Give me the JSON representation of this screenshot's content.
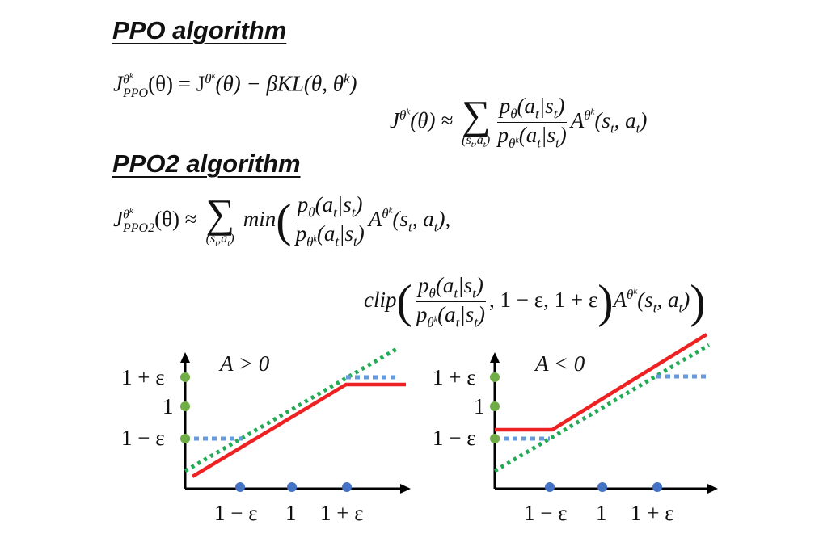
{
  "headings": {
    "ppo": "PPO algorithm",
    "ppo2": "PPO2 algorithm"
  },
  "ppo_formula": {
    "lhs_J": "J",
    "lhs_sup": "θ",
    "lhs_supsup": "k",
    "lhs_sub": "PPO",
    "rhs": "(θ) = J",
    "rhs_sup": "θ",
    "rhs_supsup": "k",
    "rhs_tail": "(θ) − βKL(θ, θ",
    "rhs_tail_sup": "k",
    "rhs_close": ")"
  },
  "j_approx": {
    "J": "J",
    "sup": "θ",
    "supsup": "k",
    "after": "(θ) ≈",
    "sum_limit": "(s",
    "sum_limit_sub": "t",
    "sum_limit_mid": ",a",
    "sum_limit_sub2": "t",
    "sum_limit_close": ")",
    "num": "p",
    "num_sub": "θ",
    "num_arg": "(a",
    "num_arg_sub": "t",
    "num_arg_mid": "|s",
    "num_arg_sub2": "t",
    "num_arg_close": ")",
    "den": "p",
    "den_sub": "θ",
    "den_subsup": "k",
    "den_arg": "(a",
    "den_arg_sub": "t",
    "den_arg_mid": "|s",
    "den_arg_sub2": "t",
    "den_arg_close": ")",
    "A": "A",
    "A_sup": "θ",
    "A_supsup": "k",
    "A_arg": "(s",
    "A_arg_sub": "t",
    "A_arg_mid": ", a",
    "A_arg_sub2": "t",
    "A_arg_close": ")"
  },
  "ppo2_formula": {
    "J": "J",
    "sup": "θ",
    "supsup": "k",
    "sub": "PPO2",
    "after": "(θ) ≈",
    "min": "min",
    "clip": "clip",
    "clip_tail": ", 1 − ε, 1 + ε",
    "comma": ","
  },
  "graphs": [
    {
      "condition": "A > 0",
      "y_ticks": [
        "1 + ε",
        "1",
        "1 − ε"
      ],
      "x_ticks": [
        "1 − ε",
        "1",
        "1 + ε"
      ],
      "line_colors": {
        "clipped": "#ee2222",
        "ratio": "#22aa55",
        "clip": "#6699dd"
      }
    },
    {
      "condition": "A < 0",
      "y_ticks": [
        "1 + ε",
        "1",
        "1 − ε"
      ],
      "x_ticks": [
        "1 − ε",
        "1",
        "1 + ε"
      ],
      "line_colors": {
        "clipped": "#ee2222",
        "ratio": "#22aa55",
        "clip": "#6699dd"
      }
    }
  ]
}
